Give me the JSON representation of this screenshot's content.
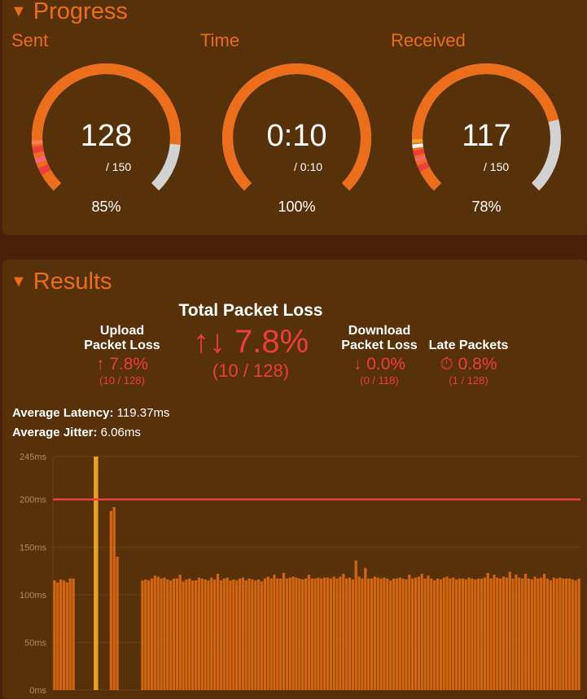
{
  "progress": {
    "heading": "Progress",
    "toggle_icon": "triangle-down-icon",
    "gauges": [
      {
        "key": "sent",
        "label": "Sent",
        "value": "128",
        "total": "/ 150",
        "percent_label": "85%",
        "fraction": 0.853
      },
      {
        "key": "time",
        "label": "Time",
        "value": "0:10",
        "total": "/ 0:10",
        "percent_label": "100%",
        "fraction": 1.0
      },
      {
        "key": "received",
        "label": "Received",
        "value": "117",
        "total": "/ 150",
        "percent_label": "78%",
        "fraction": 0.78
      }
    ]
  },
  "results": {
    "heading": "Results",
    "total_loss": {
      "title": "Total Packet Loss",
      "value": "7.8%",
      "fraction": "(10 / 128)",
      "icon": "arrows-up-down-icon"
    },
    "upload_loss": {
      "title_line1": "Upload",
      "title_line2": "Packet Loss",
      "value": "7.8%",
      "fraction": "(10 / 128)",
      "icon": "arrow-up-icon"
    },
    "download_loss": {
      "title_line1": "Download",
      "title_line2": "Packet Loss",
      "value": "0.0%",
      "fraction": "(0 / 118)",
      "icon": "arrow-down-icon"
    },
    "late_packets": {
      "title": "Late Packets",
      "value": "0.8%",
      "fraction": "(1 / 128)",
      "icon": "stopwatch-icon"
    },
    "avg_latency": {
      "label": "Average Latency:",
      "value": "119.37ms"
    },
    "avg_jitter": {
      "label": "Average Jitter:",
      "value": "6.06ms"
    }
  },
  "colors": {
    "accent": "#ec6e1a",
    "loss": "#ee3d3d",
    "late": "#e8a321",
    "remaining": "#d2d2d2",
    "background": "#573109"
  },
  "chart_data": {
    "type": "bar",
    "ytick_labels": [
      "0ms",
      "50ms",
      "100ms",
      "150ms",
      "200ms",
      "245ms"
    ],
    "ylim": [
      0,
      245
    ],
    "threshold": 200,
    "values": [
      115,
      113,
      116,
      115,
      113,
      117,
      117,
      0,
      0,
      0,
      0,
      0,
      0,
      245,
      0,
      0,
      0,
      0,
      188,
      192,
      140,
      0,
      0,
      0,
      0,
      0,
      0,
      0,
      115,
      116,
      115,
      117,
      120,
      119,
      117,
      118,
      116,
      115,
      117,
      117,
      121,
      114,
      116,
      117,
      115,
      115,
      118,
      117,
      116,
      115,
      118,
      116,
      122,
      115,
      117,
      118,
      115,
      116,
      115,
      117,
      118,
      115,
      117,
      116,
      115,
      116,
      114,
      117,
      119,
      117,
      121,
      117,
      117,
      123,
      117,
      118,
      119,
      118,
      117,
      116,
      117,
      121,
      117,
      117,
      118,
      117,
      118,
      118,
      117,
      119,
      117,
      119,
      122,
      117,
      118,
      116,
      136,
      119,
      117,
      128,
      117,
      117,
      119,
      118,
      117,
      118,
      117,
      115,
      117,
      117,
      118,
      117,
      116,
      121,
      117,
      118,
      119,
      122,
      117,
      120,
      117,
      115,
      117,
      116,
      118,
      119,
      117,
      118,
      116,
      117,
      117,
      116,
      118,
      117,
      116,
      117,
      117,
      118,
      123,
      117,
      121,
      118,
      117,
      119,
      118,
      124,
      117,
      121,
      118,
      117,
      122,
      117,
      116,
      119,
      117,
      118,
      122,
      117,
      115,
      118,
      117,
      118,
      117,
      117,
      117,
      116,
      115,
      117
    ],
    "late_index": 13
  }
}
